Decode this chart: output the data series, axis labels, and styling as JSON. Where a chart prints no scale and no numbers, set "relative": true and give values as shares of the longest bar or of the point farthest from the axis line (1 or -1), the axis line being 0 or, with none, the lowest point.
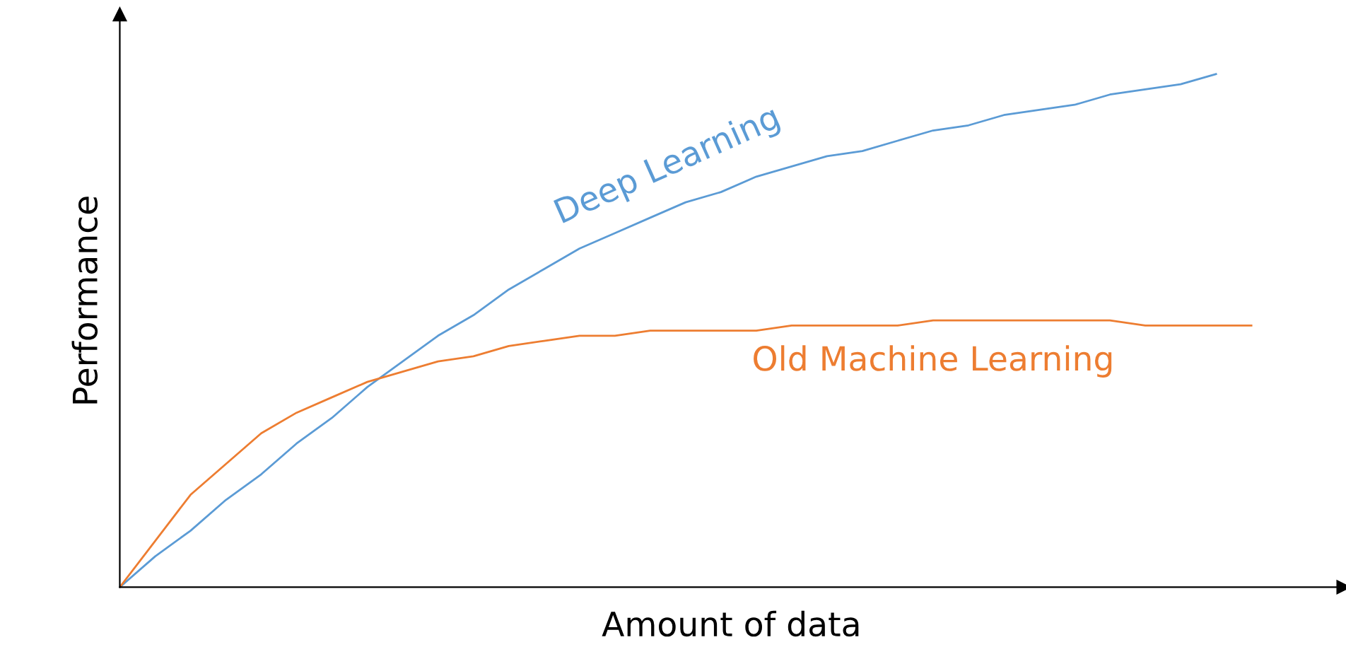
{
  "chart_data": {
    "type": "line",
    "relative": true,
    "xlabel": "Amount of data",
    "ylabel": "Performance",
    "legend": false,
    "marker": "none",
    "line_style": "solid",
    "categories": [
      null,
      null,
      null,
      null,
      null,
      null,
      null,
      null,
      null,
      null,
      null,
      null,
      null,
      null,
      null,
      null,
      null,
      null,
      null,
      null,
      null,
      null,
      null,
      null,
      null,
      null,
      null,
      null,
      null,
      null,
      null,
      null,
      null
    ],
    "series": [
      {
        "name": "Deep Learning",
        "color": "#5b9bd5",
        "values": [
          0,
          0.06,
          0.11,
          0.17,
          0.22,
          0.28,
          0.33,
          0.39,
          0.44,
          0.49,
          0.53,
          0.58,
          0.62,
          0.66,
          0.69,
          0.72,
          0.75,
          0.77,
          0.8,
          0.82,
          0.84,
          0.85,
          0.87,
          0.89,
          0.9,
          0.92,
          0.93,
          0.94,
          0.96,
          0.97,
          0.98,
          1.0,
          null
        ]
      },
      {
        "name": "Old Machine Learning",
        "color": "#ed7d31",
        "values": [
          0,
          0.09,
          0.18,
          0.24,
          0.3,
          0.34,
          0.37,
          0.4,
          0.42,
          0.44,
          0.45,
          0.47,
          0.48,
          0.49,
          0.49,
          0.5,
          0.5,
          0.5,
          0.5,
          0.51,
          0.51,
          0.51,
          0.51,
          0.52,
          0.52,
          0.52,
          0.52,
          0.52,
          0.52,
          0.51,
          0.51,
          0.51,
          0.51
        ]
      }
    ]
  }
}
